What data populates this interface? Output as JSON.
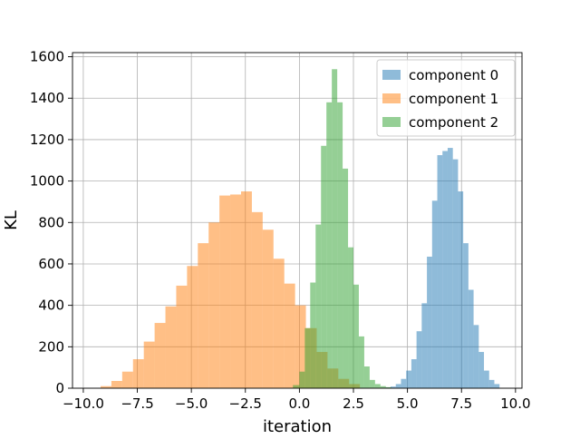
{
  "chart_data": {
    "type": "bar",
    "subtype": "histogram",
    "xlabel": "iteration",
    "ylabel": "KL",
    "xlim": [
      -10.5,
      10.3
    ],
    "ylim": [
      0,
      1620
    ],
    "xticks": [
      -10.0,
      -7.5,
      -5.0,
      -2.5,
      0.0,
      2.5,
      5.0,
      7.5,
      10.0
    ],
    "xtick_labels": [
      "−10.0",
      "−7.5",
      "−5.0",
      "−2.5",
      "0.0",
      "2.5",
      "5.0",
      "7.5",
      "10.0"
    ],
    "yticks": [
      0,
      200,
      400,
      600,
      800,
      1000,
      1200,
      1400,
      1600
    ],
    "ytick_labels": [
      "0",
      "200",
      "400",
      "600",
      "800",
      "1000",
      "1200",
      "1400",
      "1600"
    ],
    "grid": true,
    "legend_position": "top-right",
    "bar_alpha": 0.5,
    "series": [
      {
        "name": "component 0",
        "color": "#1f77b4",
        "bin_edges": [
          3.98,
          4.22,
          4.46,
          4.7,
          4.94,
          5.18,
          5.42,
          5.66,
          5.9,
          6.14,
          6.38,
          6.62,
          6.86,
          7.1,
          7.34,
          7.58,
          7.82,
          8.06,
          8.3,
          8.54,
          8.78,
          9.02,
          9.26
        ],
        "counts": [
          3,
          8,
          20,
          45,
          85,
          140,
          275,
          410,
          635,
          905,
          1125,
          1145,
          1160,
          1105,
          950,
          700,
          475,
          305,
          175,
          85,
          40,
          20
        ]
      },
      {
        "name": "component 1",
        "color": "#ff7f0e",
        "bin_edges": [
          -9.2,
          -8.7,
          -8.2,
          -7.7,
          -7.2,
          -6.7,
          -6.2,
          -5.7,
          -5.2,
          -4.7,
          -4.2,
          -3.7,
          -3.2,
          -2.7,
          -2.2,
          -1.7,
          -1.2,
          -0.7,
          -0.2,
          0.3,
          0.8,
          1.3,
          1.8,
          2.3,
          2.8
        ],
        "counts": [
          10,
          35,
          80,
          140,
          225,
          315,
          395,
          495,
          590,
          700,
          800,
          930,
          935,
          950,
          850,
          765,
          625,
          505,
          400,
          290,
          175,
          95,
          45,
          20
        ]
      },
      {
        "name": "component 2",
        "color": "#2ca02c",
        "bin_edges": [
          -0.3,
          0.0,
          0.25,
          0.5,
          0.75,
          1.0,
          1.25,
          1.5,
          1.75,
          2.0,
          2.25,
          2.5,
          2.75,
          3.0,
          3.25,
          3.5,
          3.75,
          4.0,
          4.25
        ],
        "counts": [
          15,
          80,
          290,
          510,
          790,
          1170,
          1380,
          1540,
          1380,
          1060,
          680,
          500,
          250,
          105,
          40,
          20,
          10,
          5
        ]
      }
    ]
  }
}
